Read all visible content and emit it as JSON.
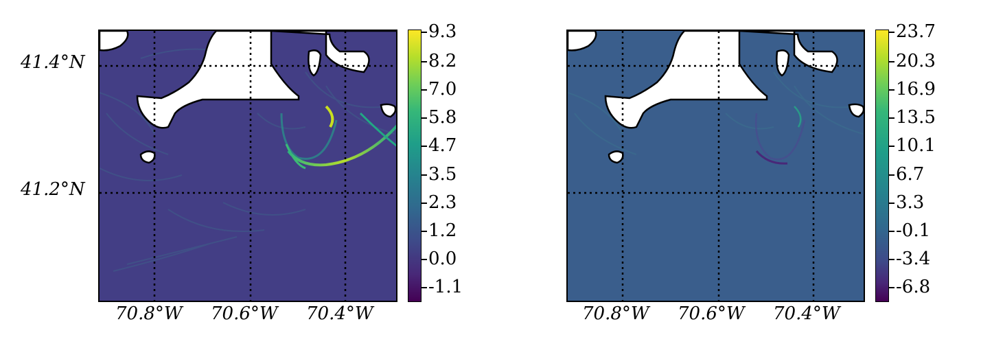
{
  "figure": {
    "panels": [
      {
        "id": "left",
        "colorbar": {
          "ticks": [
            "9.3",
            "8.2",
            "7.0",
            "5.8",
            "4.7",
            "3.5",
            "2.3",
            "1.2",
            "0.0",
            "-1.1"
          ],
          "colormap": "viridis"
        },
        "background_color": "#433e85",
        "lat_labels": [
          "41.4°N",
          "41.2°N"
        ],
        "lon_labels": [
          "70.8°W",
          "70.6°W",
          "70.4°W"
        ]
      },
      {
        "id": "right",
        "colorbar": {
          "ticks": [
            "23.7",
            "20.3",
            "16.9",
            "13.5",
            "10.1",
            "6.7",
            "3.3",
            "-0.1",
            "-3.4",
            "-6.8"
          ],
          "colormap": "viridis"
        },
        "background_color": "#3a5e8c",
        "lat_labels": [],
        "lon_labels": [
          "70.8°W",
          "70.6°W",
          "70.4°W"
        ]
      }
    ]
  }
}
